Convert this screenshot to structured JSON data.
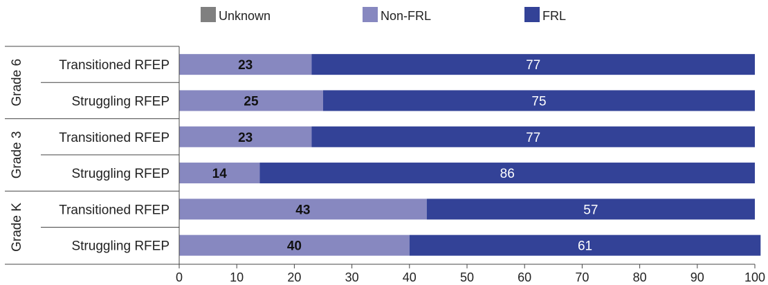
{
  "legend": [
    {
      "label": "Unknown",
      "color": "#808080"
    },
    {
      "label": "Non-FRL",
      "color": "#8788c0"
    },
    {
      "label": "FRL",
      "color": "#334297"
    }
  ],
  "chart_data": {
    "type": "bar",
    "orientation": "horizontal",
    "stacked": true,
    "groups": [
      {
        "label": "Grade 6",
        "rows": [
          "Transitioned RFEP",
          "Struggling RFEP"
        ]
      },
      {
        "label": "Grade 3",
        "rows": [
          "Transitioned RFEP",
          "Struggling RFEP"
        ]
      },
      {
        "label": "Grade K",
        "rows": [
          "Transitioned RFEP",
          "Struggling RFEP"
        ]
      }
    ],
    "categories": [
      "Transitioned RFEP",
      "Struggling RFEP",
      "Transitioned RFEP",
      "Struggling RFEP",
      "Transitioned RFEP",
      "Struggling RFEP"
    ],
    "series": [
      {
        "name": "Unknown",
        "color": "#808080",
        "values": [
          0,
          0,
          0,
          0,
          0,
          0
        ]
      },
      {
        "name": "Non-FRL",
        "color": "#8788c0",
        "values": [
          23,
          25,
          23,
          14,
          43,
          40
        ]
      },
      {
        "name": "FRL",
        "color": "#334297",
        "values": [
          77,
          75,
          77,
          86,
          57,
          61
        ]
      }
    ],
    "data_labels": [
      {
        "series": "Non-FRL",
        "values": [
          "23",
          "25",
          "23",
          "14",
          "43",
          "40"
        ]
      },
      {
        "series": "FRL",
        "values": [
          "77",
          "75",
          "77",
          "86",
          "57",
          "61"
        ]
      }
    ],
    "xlim": [
      0,
      100
    ],
    "xticks": [
      "0",
      "10",
      "20",
      "30",
      "40",
      "50",
      "60",
      "70",
      "80",
      "90",
      "100"
    ],
    "grid": false,
    "legend_position": "top"
  }
}
